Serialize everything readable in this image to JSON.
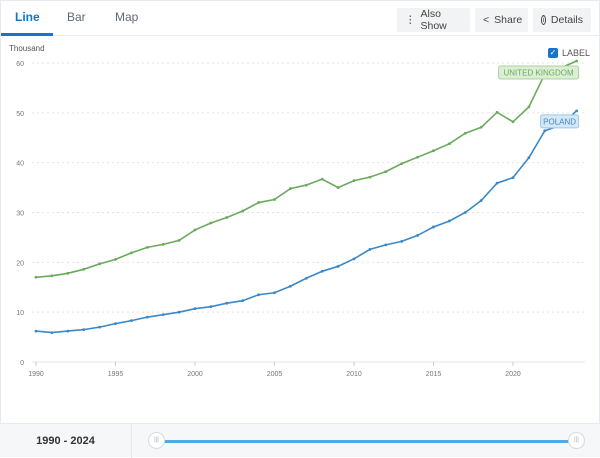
{
  "tabs": [
    {
      "label": "Line"
    },
    {
      "label": "Bar"
    },
    {
      "label": "Map"
    }
  ],
  "buttons": {
    "also_show": "Also Show",
    "share": "Share",
    "details": "Details"
  },
  "label_toggle": "LABEL",
  "range_label": "1990 - 2024",
  "chart_data": {
    "type": "line",
    "ylabel": "Thousand",
    "ylim": [
      0,
      60
    ],
    "yticks": [
      "0",
      "10",
      "20",
      "30",
      "40",
      "50",
      "60"
    ],
    "xticks": [
      "1990",
      "1995",
      "2000",
      "2005",
      "2010",
      "2015",
      "2020"
    ],
    "grid": true,
    "x": [
      1990,
      1991,
      1992,
      1993,
      1994,
      1995,
      1996,
      1997,
      1998,
      1999,
      2000,
      2001,
      2002,
      2003,
      2004,
      2005,
      2006,
      2007,
      2008,
      2009,
      2010,
      2011,
      2012,
      2013,
      2014,
      2015,
      2016,
      2017,
      2018,
      2019,
      2020,
      2021,
      2022,
      2023,
      2024
    ],
    "series": [
      {
        "name": "UNITED KINGDOM",
        "color": "#6aaa5c",
        "values": [
          17.0,
          17.3,
          17.8,
          18.6,
          19.7,
          20.6,
          21.9,
          23.0,
          23.6,
          24.4,
          26.5,
          27.9,
          29.0,
          30.3,
          32.0,
          32.6,
          34.8,
          35.5,
          36.7,
          35.0,
          36.4,
          37.1,
          38.2,
          39.8,
          41.1,
          42.4,
          43.8,
          45.9,
          47.1,
          50.1,
          48.2,
          51.2,
          57.8,
          59.0,
          60.4
        ]
      },
      {
        "name": "POLAND",
        "color": "#3a88c8",
        "values": [
          6.2,
          5.9,
          6.2,
          6.5,
          7.0,
          7.7,
          8.3,
          9.0,
          9.5,
          10.0,
          10.7,
          11.1,
          11.8,
          12.3,
          13.5,
          13.9,
          15.2,
          16.8,
          18.2,
          19.2,
          20.7,
          22.6,
          23.5,
          24.2,
          25.4,
          27.1,
          28.3,
          30.0,
          32.4,
          35.9,
          37.0,
          41.0,
          46.4,
          47.5,
          50.4
        ]
      }
    ]
  }
}
